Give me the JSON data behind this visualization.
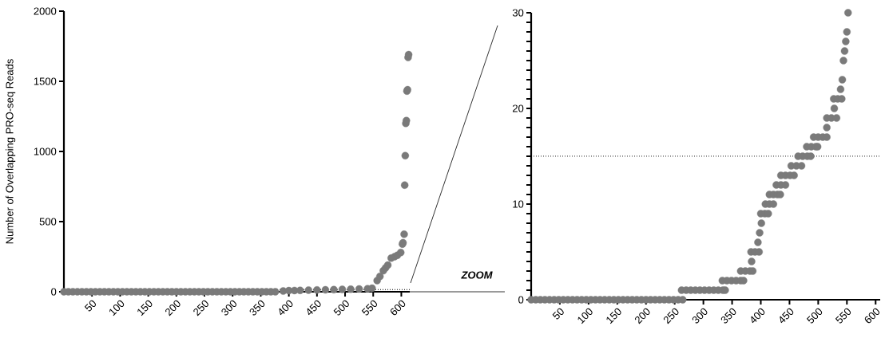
{
  "chart_data": [
    {
      "type": "scatter",
      "ylabel": "Number of Overlapping PRO-seq Reads",
      "color": "#7a7a7a",
      "x": [
        0,
        8,
        16,
        24,
        32,
        40,
        48,
        56,
        64,
        72,
        80,
        88,
        96,
        104,
        112,
        120,
        128,
        136,
        144,
        152,
        160,
        168,
        176,
        184,
        192,
        200,
        208,
        216,
        224,
        232,
        240,
        248,
        256,
        264,
        272,
        280,
        288,
        296,
        304,
        312,
        320,
        328,
        336,
        344,
        352,
        360,
        368,
        376,
        390,
        400,
        410,
        420,
        435,
        450,
        465,
        480,
        495,
        510,
        525,
        540,
        548,
        557,
        562,
        568,
        572,
        576,
        582,
        588,
        593,
        599,
        602,
        603,
        605,
        606,
        607,
        608,
        609,
        610,
        611,
        612,
        613
      ],
      "values": [
        0,
        0,
        0,
        0,
        0,
        0,
        0,
        0,
        0,
        0,
        0,
        0,
        0,
        0,
        0,
        0,
        0,
        0,
        0,
        0,
        0,
        0,
        0,
        0,
        0,
        0,
        0,
        0,
        0,
        0,
        0,
        0,
        0,
        0,
        0,
        0,
        0,
        0,
        0,
        0,
        0,
        0,
        0,
        0,
        0,
        0,
        0,
        0,
        5,
        8,
        9,
        10,
        12,
        13,
        14,
        15,
        17,
        18,
        20,
        22,
        25,
        80,
        110,
        150,
        170,
        190,
        240,
        250,
        260,
        280,
        340,
        350,
        410,
        760,
        970,
        1200,
        1220,
        1430,
        1440,
        1670,
        1690
      ],
      "xlim": [
        0,
        615
      ],
      "ylim": [
        0,
        2000
      ],
      "xticks": [
        50,
        100,
        150,
        200,
        250,
        300,
        350,
        400,
        450,
        500,
        550,
        600
      ],
      "yticks": [
        0,
        500,
        1000,
        1500,
        2000
      ],
      "ref_lines": [
        {
          "axis": "y",
          "value": 15,
          "line_style": "dotted",
          "color": "#000000"
        }
      ],
      "annotations": [
        "ZOOM"
      ]
    },
    {
      "type": "scatter",
      "color": "#7a7a7a",
      "x": [
        0,
        8,
        16,
        24,
        32,
        40,
        48,
        56,
        64,
        72,
        80,
        88,
        96,
        104,
        112,
        120,
        128,
        136,
        144,
        152,
        160,
        168,
        176,
        184,
        192,
        200,
        208,
        216,
        224,
        232,
        240,
        248,
        256,
        264,
        262,
        270,
        278,
        286,
        294,
        302,
        310,
        318,
        326,
        334,
        338,
        333,
        341,
        349,
        357,
        365,
        370,
        365,
        373,
        381,
        386,
        384,
        383,
        390,
        397,
        395,
        398,
        401,
        400,
        407,
        413,
        408,
        415,
        422,
        415,
        422,
        429,
        434,
        427,
        435,
        443,
        435,
        443,
        451,
        458,
        453,
        462,
        471,
        465,
        473,
        481,
        487,
        480,
        488,
        496,
        499,
        492,
        500,
        508,
        515,
        515,
        515,
        523,
        532,
        528,
        527,
        534,
        541,
        539,
        542,
        544,
        546,
        548,
        550,
        552
      ],
      "values": [
        0,
        0,
        0,
        0,
        0,
        0,
        0,
        0,
        0,
        0,
        0,
        0,
        0,
        0,
        0,
        0,
        0,
        0,
        0,
        0,
        0,
        0,
        0,
        0,
        0,
        0,
        0,
        0,
        0,
        0,
        0,
        0,
        0,
        0,
        1,
        1,
        1,
        1,
        1,
        1,
        1,
        1,
        1,
        1,
        1,
        2,
        2,
        2,
        2,
        2,
        2,
        3,
        3,
        3,
        3,
        4,
        5,
        5,
        5,
        6,
        7,
        8,
        9,
        9,
        9,
        10,
        10,
        10,
        11,
        11,
        11,
        11,
        12,
        12,
        12,
        13,
        13,
        13,
        13,
        14,
        14,
        14,
        15,
        15,
        15,
        15,
        16,
        16,
        16,
        16,
        17,
        17,
        17,
        17,
        18,
        19,
        19,
        19,
        20,
        21,
        21,
        21,
        22,
        23,
        25,
        26,
        27,
        28,
        30
      ],
      "xlim": [
        0,
        608
      ],
      "ylim": [
        0,
        30
      ],
      "xticks": [
        50,
        100,
        150,
        200,
        250,
        300,
        350,
        400,
        450,
        500,
        550,
        600
      ],
      "yticks": [
        0,
        {
          "value": 1,
          "label": null
        },
        {
          "value": 2,
          "label": null
        },
        {
          "value": 3,
          "label": null
        },
        {
          "value": 4,
          "label": null
        },
        {
          "value": 5,
          "label": null
        },
        {
          "value": 6,
          "label": null
        },
        {
          "value": 7,
          "label": null
        },
        {
          "value": 8,
          "label": null
        },
        {
          "value": 9,
          "label": null
        },
        10,
        {
          "value": 11,
          "label": null
        },
        {
          "value": 12,
          "label": null
        },
        {
          "value": 13,
          "label": null
        },
        {
          "value": 14,
          "label": null
        },
        {
          "value": 15,
          "label": null
        },
        {
          "value": 16,
          "label": null
        },
        {
          "value": 17,
          "label": null
        },
        {
          "value": 18,
          "label": null
        },
        {
          "value": 19,
          "label": null
        },
        20,
        {
          "value": 21,
          "label": null
        },
        {
          "value": 22,
          "label": null
        },
        {
          "value": 23,
          "label": null
        },
        {
          "value": 24,
          "label": null
        },
        {
          "value": 25,
          "label": null
        },
        {
          "value": 26,
          "label": null
        },
        {
          "value": 27,
          "label": null
        },
        {
          "value": 28,
          "label": null
        },
        {
          "value": 29,
          "label": null
        },
        30
      ],
      "ref_lines": [
        {
          "axis": "y",
          "value": 15,
          "line_style": "dotted",
          "color": "#000000"
        }
      ]
    }
  ]
}
